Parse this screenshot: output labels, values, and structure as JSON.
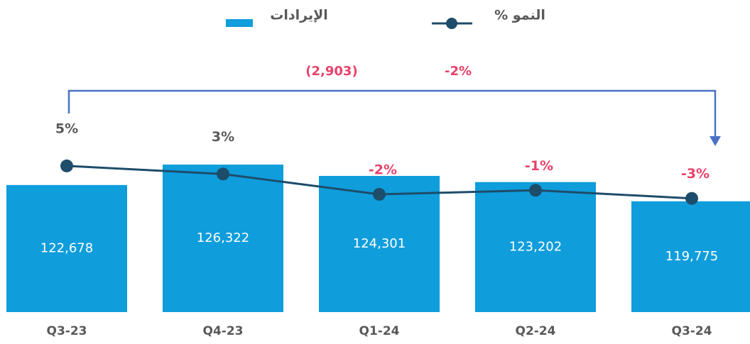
{
  "chart_data": {
    "type": "bar",
    "categories": [
      "Q3-23",
      "Q4-23",
      "Q1-24",
      "Q2-24",
      "Q3-24"
    ],
    "series": [
      {
        "name": "الإيرادات",
        "type": "bar",
        "color": "#0f9ddc",
        "values": [
          122678,
          126322,
          124301,
          123202,
          119775
        ],
        "value_labels": [
          "122,678",
          "126,322",
          "124,301",
          "123,202",
          "119,775"
        ]
      },
      {
        "name": "% النمو",
        "type": "line",
        "axis": "y2",
        "color": "#1d4d6a",
        "values": [
          5,
          3,
          -2,
          -1,
          -3
        ],
        "value_labels": [
          "5%",
          "3%",
          "-2%",
          "-1%",
          "-3%"
        ]
      }
    ],
    "ylim": [
      100000,
      150000
    ],
    "y2lim": [
      -31,
      38
    ],
    "annotations": [
      "(2,903)",
      "-2%"
    ]
  }
}
